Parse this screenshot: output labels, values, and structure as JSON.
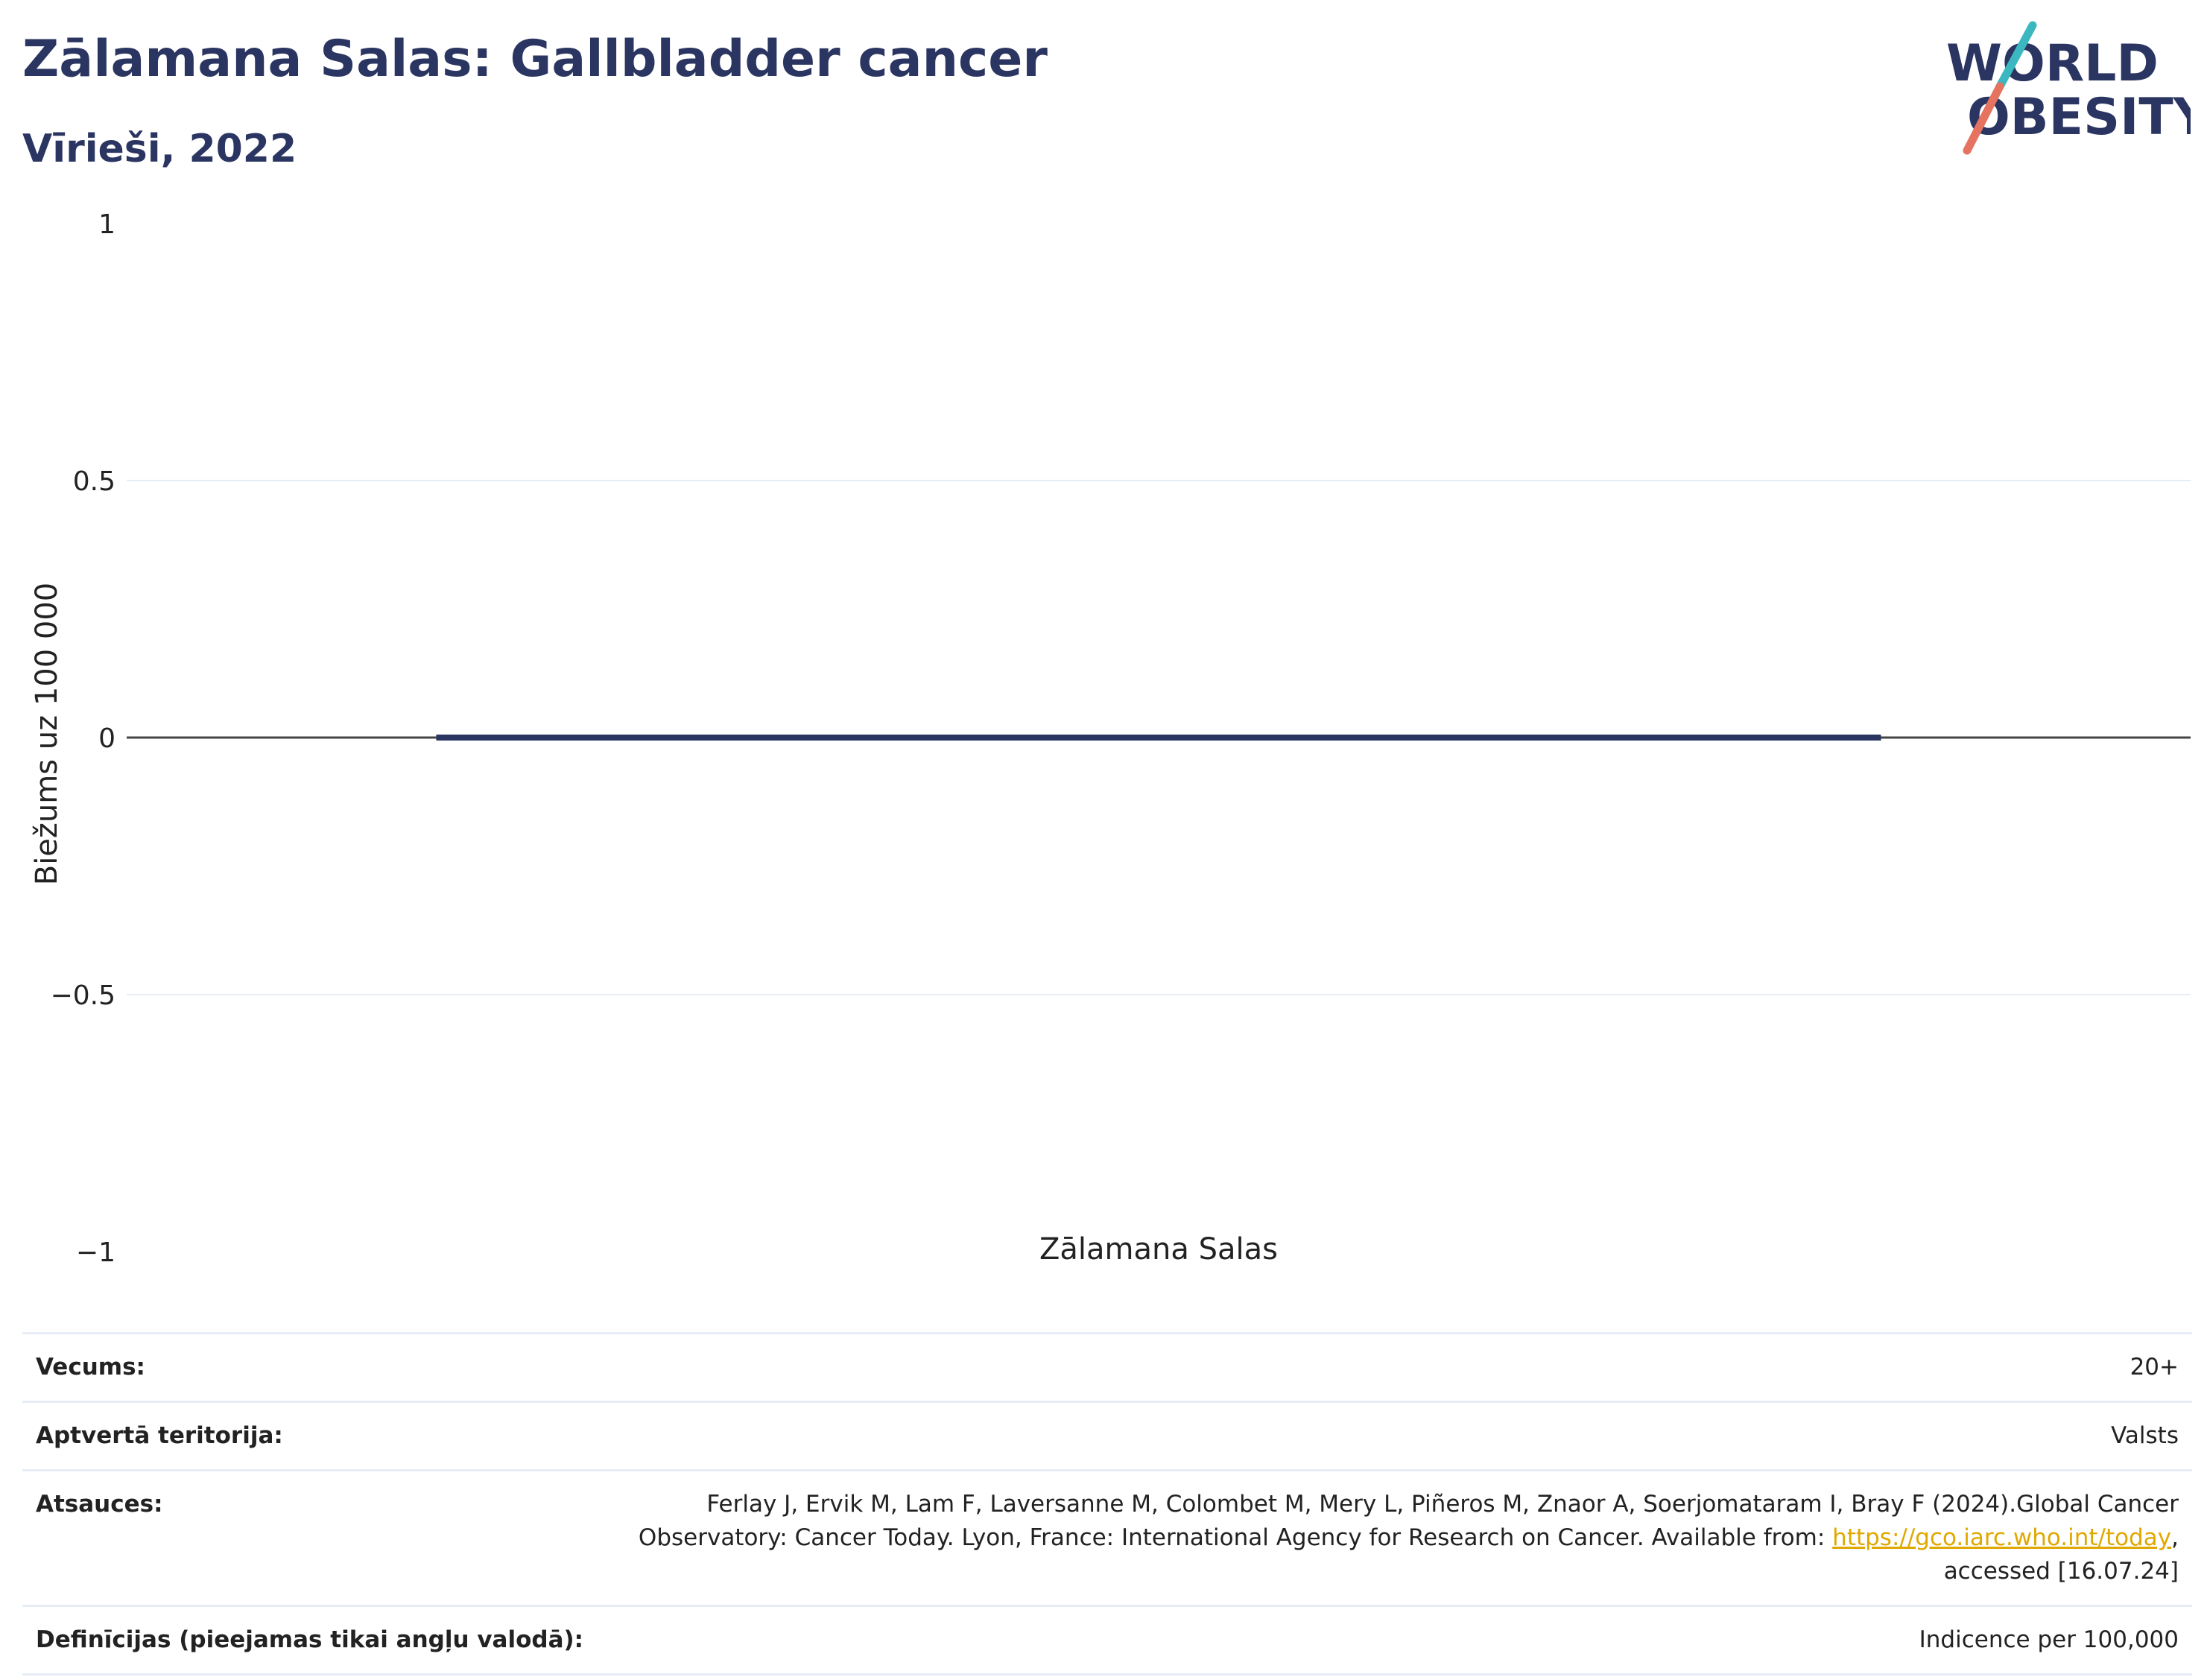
{
  "header": {
    "title": "Zālamana Salas: Gallbladder cancer",
    "subtitle": "Vīrieši, 2022"
  },
  "logo": {
    "line1": "WORLD",
    "line2": "OBESITY",
    "colors": {
      "text": "#2b3561",
      "slash_top": "#3bb8bf",
      "slash_bottom": "#e5735f"
    }
  },
  "chart_data": {
    "type": "bar",
    "categories": [
      "Zālamana Salas"
    ],
    "values": [
      0
    ],
    "ylabel": "Biežums uz 100 000",
    "xlabel": "",
    "ylim": [
      -1,
      1
    ],
    "yticks": [
      1,
      0.5,
      0,
      -0.5,
      -1
    ],
    "ytick_labels": [
      "1",
      "0.5",
      "0",
      "−0.5",
      "−1"
    ],
    "grid": true,
    "bar_color": "#2b3561"
  },
  "info": {
    "rows": [
      {
        "key": "Vecums:",
        "value": "20+"
      },
      {
        "key": "Aptvertā teritorija:",
        "value": "Valsts"
      },
      {
        "key": "Atsauces:",
        "value_line1": "Ferlay J, Ervik M, Lam F, Laversanne M, Colombet M, Mery L, Piñeros M, Znaor A, Soerjomataram I, Bray F (2024).Global Cancer",
        "value_line2_before": "Observatory: Cancer Today. Lyon, France: International Agency for Research on Cancer. Available from: ",
        "link": "https://gco.iarc.who.int/today",
        "value_line2_after": ",",
        "value_line3": "accessed [16.07.24]"
      },
      {
        "key": "Definīcijas (pieejamas tikai angļu valodā):",
        "value": "Indicence per 100,000"
      }
    ]
  }
}
